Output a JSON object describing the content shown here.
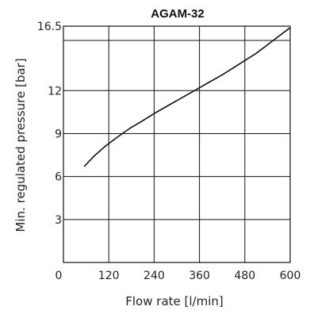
{
  "chart_data": {
    "type": "line",
    "title": "AGAM-32",
    "xlabel": "Flow rate [l/min]",
    "ylabel": "Min. regulated pressure [bar]",
    "xlim": [
      0,
      600
    ],
    "ylim": [
      0,
      16.5
    ],
    "x_ticks": [
      0,
      120,
      240,
      360,
      480,
      600
    ],
    "x_tick_labels": [
      "0",
      "120",
      "240",
      "360",
      "480",
      "600"
    ],
    "y_ticks": [
      3,
      6,
      9,
      12,
      16.5
    ],
    "y_tick_labels": [
      "3",
      "6",
      "9",
      "12",
      "16.5"
    ],
    "extra_gridlines_y": [
      15.5
    ],
    "grid": true,
    "series": [
      {
        "color": "#111111",
        "x": [
          55,
          80,
          110,
          140,
          175,
          210,
          240,
          270,
          300,
          330,
          360,
          390,
          420,
          450,
          480,
          510,
          540,
          570,
          600
        ],
        "y": [
          6.7,
          7.4,
          8.1,
          8.7,
          9.35,
          9.9,
          10.4,
          10.85,
          11.3,
          11.75,
          12.2,
          12.65,
          13.1,
          13.6,
          14.1,
          14.6,
          15.2,
          15.8,
          16.4
        ]
      }
    ]
  }
}
